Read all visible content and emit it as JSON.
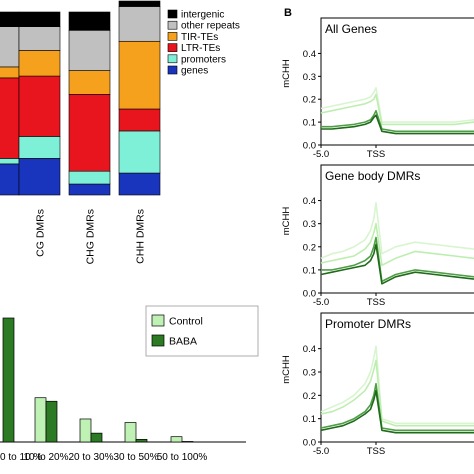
{
  "panel_b_label": "B",
  "chart_data": [
    {
      "id": "stacked",
      "type": "bar",
      "categories": [
        "",
        "CG DMRs",
        "CHG DMRs",
        "CHH DMRs"
      ],
      "legend": [
        "intergenic",
        "other repeats",
        "TIR-TEs",
        "LTR-TEs",
        "promoters",
        "genes"
      ],
      "colors": {
        "intergenic": "#000000",
        "other repeats": "#c0c0c0",
        "TIR-TEs": "#f5a11d",
        "LTR-TEs": "#e8141e",
        "promoters": "#7ff0d8",
        "genes": "#1a35bd"
      },
      "series": [
        {
          "name": "genes",
          "values": [
            17,
            20,
            6,
            12
          ]
        },
        {
          "name": "promoters",
          "values": [
            3,
            12,
            7,
            23
          ]
        },
        {
          "name": "LTR-TEs",
          "values": [
            44,
            33,
            42,
            12
          ]
        },
        {
          "name": "TIR-TEs",
          "values": [
            6,
            14,
            13,
            37
          ]
        },
        {
          "name": "other repeats",
          "values": [
            22,
            13,
            22,
            19
          ]
        },
        {
          "name": "intergenic",
          "values": [
            8,
            8,
            10,
            3
          ]
        }
      ],
      "ylim": [
        0,
        100
      ]
    },
    {
      "id": "methylation",
      "type": "bar",
      "categories": [
        "0 to 10 %",
        "10 to 20%",
        "20 to 30%",
        "30 to 50%",
        "50 to 100%"
      ],
      "series": [
        {
          "name": "Control",
          "color": "#bff0b4",
          "values": [
            0,
            25,
            13,
            11,
            3
          ]
        },
        {
          "name": "BABA",
          "color": "#2c7a23",
          "values": [
            70,
            23,
            5,
            1.5,
            0.3
          ]
        }
      ],
      "ylim": [
        0,
        75
      ]
    },
    {
      "id": "all-genes",
      "type": "line",
      "title": "All Genes",
      "ylabel": "mCHH",
      "xticks": [
        "-5.0",
        "TSS"
      ],
      "yticks": [
        "0.0",
        "0.1",
        "0.2",
        "0.3",
        "0.4"
      ],
      "ylim": [
        0,
        0.45
      ],
      "x": [
        -5,
        -4,
        -3,
        -2,
        -1,
        -0.5,
        -0.2,
        0,
        0.3,
        1,
        2,
        3,
        4,
        5
      ],
      "series": [
        {
          "color": "#d8f5cf",
          "values": [
            0.16,
            0.17,
            0.18,
            0.19,
            0.2,
            0.21,
            0.23,
            0.25,
            0.1,
            0.1,
            0.1,
            0.1,
            0.1,
            0.11
          ]
        },
        {
          "color": "#bdeeb0",
          "values": [
            0.14,
            0.15,
            0.16,
            0.17,
            0.18,
            0.19,
            0.2,
            0.22,
            0.09,
            0.09,
            0.09,
            0.09,
            0.09,
            0.1
          ]
        },
        {
          "color": "#4e9e46",
          "values": [
            0.08,
            0.08,
            0.085,
            0.09,
            0.1,
            0.11,
            0.13,
            0.15,
            0.07,
            0.06,
            0.06,
            0.06,
            0.06,
            0.06
          ]
        },
        {
          "color": "#1f6b1a",
          "values": [
            0.07,
            0.07,
            0.075,
            0.08,
            0.09,
            0.1,
            0.12,
            0.13,
            0.06,
            0.05,
            0.05,
            0.05,
            0.05,
            0.05
          ]
        }
      ]
    },
    {
      "id": "gene-body-dmrs",
      "type": "line",
      "title": "Gene body DMRs",
      "ylabel": "mCHH",
      "xticks": [
        "-5.0",
        "TSS"
      ],
      "yticks": [
        "0.0",
        "0.1",
        "0.2",
        "0.3",
        "0.4"
      ],
      "ylim": [
        0,
        0.45
      ],
      "x": [
        -5,
        -4,
        -3,
        -2,
        -1,
        -0.5,
        -0.2,
        0,
        0.3,
        1,
        2,
        3,
        4,
        5
      ],
      "series": [
        {
          "color": "#d8f5cf",
          "values": [
            0.15,
            0.17,
            0.18,
            0.2,
            0.23,
            0.27,
            0.32,
            0.39,
            0.17,
            0.2,
            0.22,
            0.21,
            0.2,
            0.19
          ]
        },
        {
          "color": "#bdeeb0",
          "values": [
            0.13,
            0.14,
            0.15,
            0.16,
            0.19,
            0.22,
            0.26,
            0.3,
            0.12,
            0.15,
            0.18,
            0.17,
            0.16,
            0.15
          ]
        },
        {
          "color": "#4e9e46",
          "values": [
            0.1,
            0.1,
            0.11,
            0.12,
            0.14,
            0.16,
            0.2,
            0.24,
            0.05,
            0.08,
            0.1,
            0.09,
            0.08,
            0.07
          ]
        },
        {
          "color": "#1f6b1a",
          "values": [
            0.08,
            0.09,
            0.1,
            0.11,
            0.12,
            0.14,
            0.17,
            0.21,
            0.04,
            0.07,
            0.09,
            0.08,
            0.07,
            0.06
          ]
        }
      ]
    },
    {
      "id": "promoter-dmrs",
      "type": "line",
      "title": "Promoter DMRs",
      "ylabel": "mCHH",
      "xticks": [
        "-5.0",
        "TSS"
      ],
      "yticks": [
        "0.0",
        "0.1",
        "0.2",
        "0.3",
        "0.4"
      ],
      "ylim": [
        0,
        0.45
      ],
      "x": [
        -5,
        -4,
        -3,
        -2,
        -1,
        -0.5,
        -0.2,
        0,
        0.3,
        1,
        2,
        3,
        4,
        5
      ],
      "series": [
        {
          "color": "#d8f5cf",
          "values": [
            0.13,
            0.15,
            0.17,
            0.2,
            0.25,
            0.3,
            0.36,
            0.41,
            0.1,
            0.08,
            0.08,
            0.08,
            0.08,
            0.08
          ]
        },
        {
          "color": "#bdeeb0",
          "values": [
            0.12,
            0.13,
            0.15,
            0.18,
            0.22,
            0.26,
            0.31,
            0.35,
            0.09,
            0.07,
            0.07,
            0.07,
            0.07,
            0.07
          ]
        },
        {
          "color": "#4e9e46",
          "values": [
            0.06,
            0.07,
            0.08,
            0.1,
            0.13,
            0.16,
            0.2,
            0.25,
            0.06,
            0.05,
            0.05,
            0.05,
            0.05,
            0.05
          ]
        },
        {
          "color": "#1f6b1a",
          "values": [
            0.05,
            0.06,
            0.07,
            0.09,
            0.12,
            0.14,
            0.18,
            0.22,
            0.05,
            0.04,
            0.04,
            0.04,
            0.04,
            0.04
          ]
        }
      ]
    }
  ]
}
